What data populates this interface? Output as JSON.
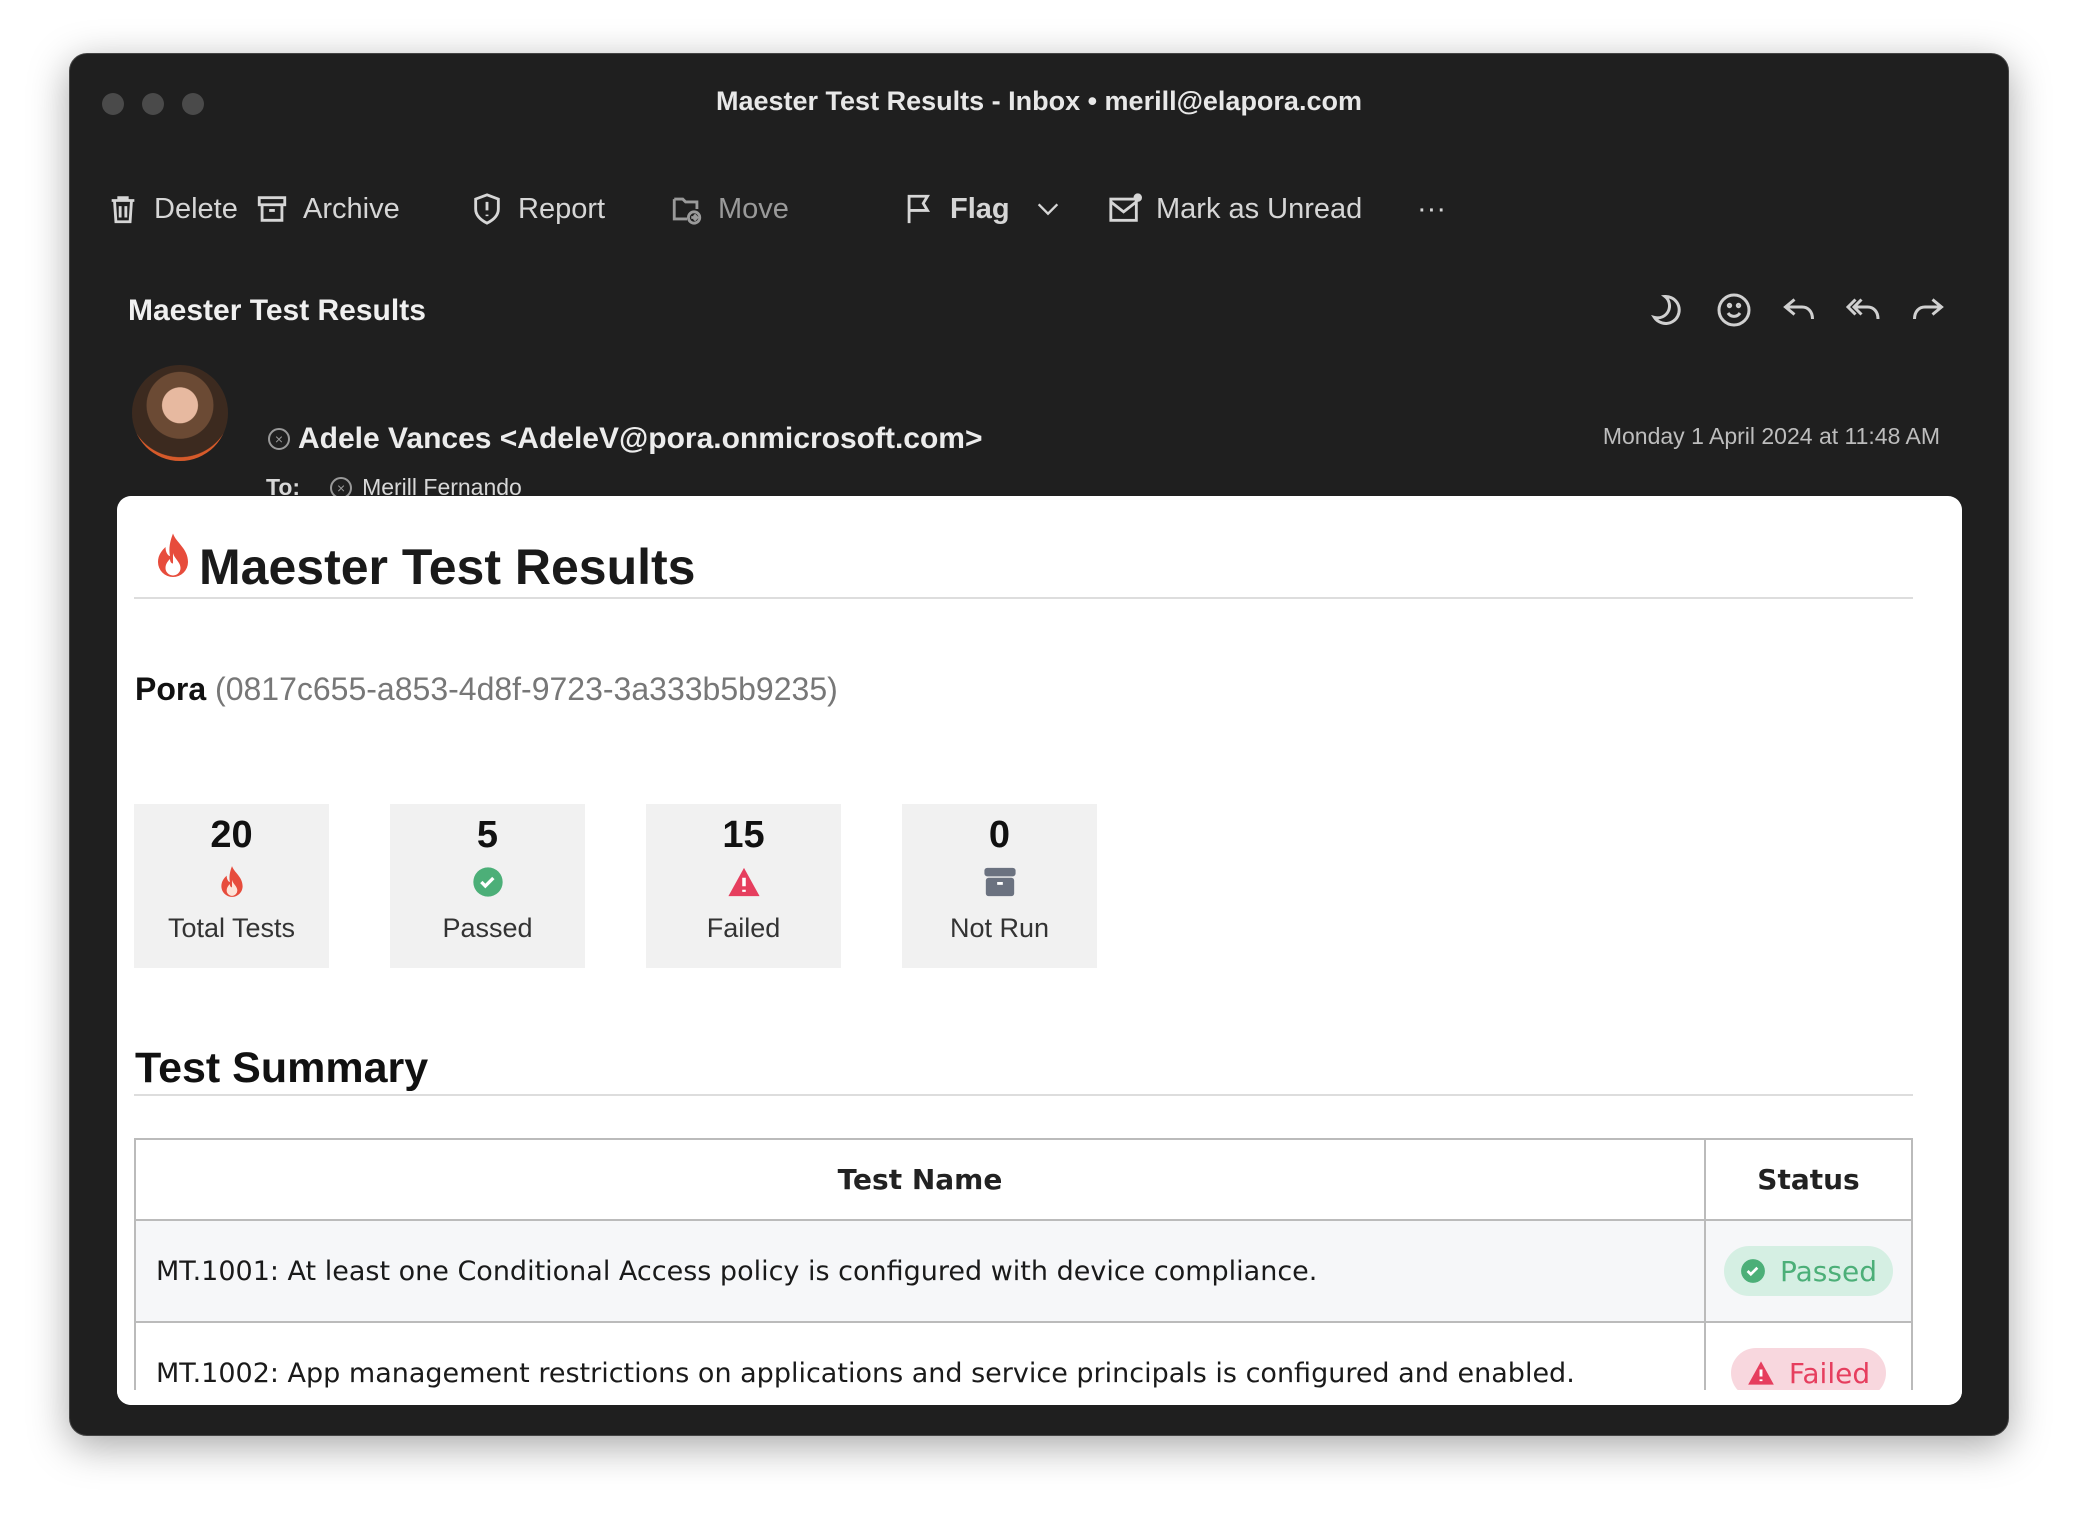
{
  "window": {
    "title": "Maester Test Results - Inbox • merill@elapora.com"
  },
  "toolbar": {
    "delete": "Delete",
    "archive": "Archive",
    "report": "Report",
    "move": "Move",
    "flag": "Flag",
    "mark_unread": "Mark as Unread",
    "more": "···"
  },
  "message": {
    "subject": "Maester Test Results",
    "sender": "Adele Vances <AdeleV@pora.onmicrosoft.com>",
    "to_label": "To:",
    "recipient": "Merill Fernando",
    "date": "Monday 1 April 2024 at 11:48 AM"
  },
  "report": {
    "title": "Maester Test Results",
    "tenant_name": "Pora",
    "tenant_id": "(0817c655-a853-4d8f-9723-3a333b5b9235)",
    "stats": [
      {
        "value": "20",
        "label": "Total Tests",
        "icon": "flame-icon"
      },
      {
        "value": "5",
        "label": "Passed",
        "icon": "check-circle-icon"
      },
      {
        "value": "15",
        "label": "Failed",
        "icon": "warning-icon"
      },
      {
        "value": "0",
        "label": "Not Run",
        "icon": "archive-icon"
      }
    ],
    "summary_title": "Test Summary",
    "table": {
      "headers": [
        "Test Name",
        "Status"
      ],
      "rows": [
        {
          "name": "MT.1001: At least one Conditional Access policy is configured with device compliance.",
          "status": "Passed"
        },
        {
          "name": "MT.1002: App management restrictions on applications and service principals is configured and enabled.",
          "status": "Failed"
        }
      ]
    }
  },
  "colors": {
    "passed": "#4caf78",
    "failed": "#e63e5e",
    "not_run": "#6b7280",
    "window_bg": "#1f1f1f"
  }
}
